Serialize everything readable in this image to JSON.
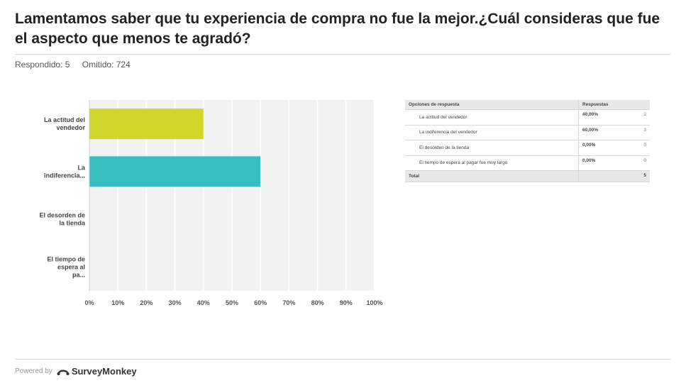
{
  "title": "Lamentamos saber que tu experiencia de compra no fue la mejor.¿Cuál consideras que fue el aspecto que menos te agradó?",
  "respondido": "Respondido: 5",
  "omitido": "Omitido: 724",
  "chart_data": {
    "type": "bar",
    "orientation": "horizontal",
    "categories": [
      "La actitud del vendedor",
      "La indiferencia...",
      "El desorden de la tienda",
      "El tiempo de espera al pa..."
    ],
    "values": [
      40,
      60,
      0,
      0
    ],
    "colors": [
      "#d2d52a",
      "#35bfbf",
      "#d2d52a",
      "#35bfbf"
    ],
    "xticks": [
      "0%",
      "10%",
      "20%",
      "30%",
      "40%",
      "50%",
      "60%",
      "70%",
      "80%",
      "90%",
      "100%"
    ],
    "xlim": [
      0,
      100
    ],
    "grid": true
  },
  "table": {
    "headers": [
      "Opciones de respuesta",
      "Respuestas"
    ],
    "rows": [
      {
        "option": "La actitud del vendedor",
        "percent": "40,00%",
        "count": "2"
      },
      {
        "option": "La indiferencia del vendedor",
        "percent": "60,00%",
        "count": "3"
      },
      {
        "option": "El desorden de la tienda",
        "percent": "0,00%",
        "count": "0"
      },
      {
        "option": "El tiempo de espera al pagar fue muy largo",
        "percent": "0,00%",
        "count": "0"
      }
    ],
    "total_label": "Total",
    "total_value": "5"
  },
  "footer": {
    "powered_by": "Powered by",
    "brand": "SurveyMonkey",
    "brand_icon": "surveymonkey-logo-icon"
  }
}
